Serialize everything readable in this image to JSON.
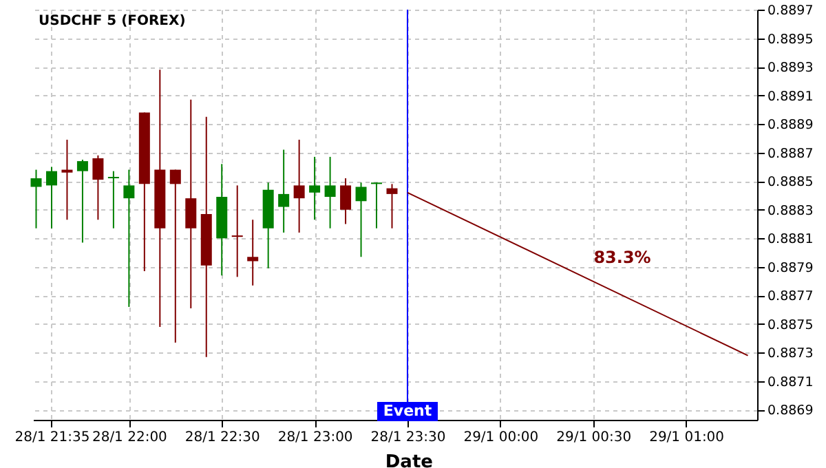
{
  "chart_data": {
    "type": "candlestick",
    "title": "USDCHF 5 (FOREX)",
    "xlabel": "Date",
    "x": [
      "--01-28T21:30",
      "--01-28T21:35",
      "--01-28T21:40",
      "--01-28T21:45",
      "--01-28T21:50",
      "--01-28T21:55",
      "--01-28T22:00",
      "--01-28T22:05",
      "--01-28T22:10",
      "--01-28T22:15",
      "--01-28T22:20",
      "--01-28T22:25",
      "--01-28T22:30",
      "--01-28T22:35",
      "--01-28T22:40",
      "--01-28T22:45",
      "--01-28T22:50",
      "--01-28T22:55",
      "--01-28T23:00",
      "--01-28T23:05",
      "--01-28T23:10",
      "--01-28T23:15",
      "--01-28T23:20",
      "--01-28T23:25"
    ],
    "ohlc": [
      [
        0.88846,
        0.88858,
        0.88817,
        0.88852
      ],
      [
        0.88847,
        0.8886,
        0.88817,
        0.88857
      ],
      [
        0.88858,
        0.88879,
        0.88823,
        0.88856
      ],
      [
        0.88857,
        0.88865,
        0.88807,
        0.88864
      ],
      [
        0.88866,
        0.88868,
        0.88823,
        0.88851
      ],
      [
        0.88852,
        0.88857,
        0.88817,
        0.88853
      ],
      [
        0.88838,
        0.88858,
        0.88762,
        0.88847
      ],
      [
        0.88898,
        0.88898,
        0.88787,
        0.88848
      ],
      [
        0.88858,
        0.88928,
        0.88748,
        0.88817
      ],
      [
        0.88858,
        0.88858,
        0.88737,
        0.88848
      ],
      [
        0.88838,
        0.88907,
        0.88761,
        0.88817
      ],
      [
        0.88827,
        0.88895,
        0.88727,
        0.88791
      ],
      [
        0.8881,
        0.88862,
        0.88784,
        0.88839
      ],
      [
        0.88812,
        0.88847,
        0.88783,
        0.88811
      ],
      [
        0.88797,
        0.88823,
        0.88777,
        0.88794
      ],
      [
        0.88817,
        0.88849,
        0.88789,
        0.88844
      ],
      [
        0.88832,
        0.88872,
        0.88814,
        0.88841
      ],
      [
        0.88847,
        0.88879,
        0.88814,
        0.88838
      ],
      [
        0.88842,
        0.88867,
        0.88823,
        0.88847
      ],
      [
        0.88839,
        0.88867,
        0.88817,
        0.88847
      ],
      [
        0.88847,
        0.88852,
        0.8882,
        0.8883
      ],
      [
        0.88836,
        0.88849,
        0.88797,
        0.88846
      ],
      [
        0.88848,
        0.88849,
        0.88817,
        0.88849
      ],
      [
        0.88845,
        0.88848,
        0.88817,
        0.88841
      ]
    ],
    "colors": [
      "#008000",
      "#008000",
      "#800000",
      "#008000",
      "#800000",
      "#008000",
      "#008000",
      "#800000",
      "#800000",
      "#800000",
      "#800000",
      "#800000",
      "#008000",
      "#800000",
      "#800000",
      "#008000",
      "#008000",
      "#800000",
      "#008000",
      "#008000",
      "#800000",
      "#008000",
      "#008000",
      "#800000"
    ],
    "series": [
      {
        "type": "line",
        "x": [
          "--01-28T23:30",
          "--01-29T01:20"
        ],
        "values": [
          0.88842,
          0.88728
        ],
        "color": "#800000"
      }
    ],
    "annotations": [
      "83.3%"
    ],
    "ref_lines": [
      {
        "axis": "x",
        "value": "--01-28T23:30",
        "label": "Event",
        "color": "#0000ff"
      }
    ],
    "xlim": [
      "--01-28T21:29",
      "--01-29T01:23"
    ],
    "xticks": [
      {
        "value": "--01-28T21:35",
        "label": "28/1 21:35"
      },
      {
        "value": "--01-28T22:00",
        "label": "28/1 22:00"
      },
      {
        "value": "--01-28T22:30",
        "label": "28/1 22:30"
      },
      {
        "value": "--01-28T23:00",
        "label": "28/1 23:00"
      },
      {
        "value": "--01-28T23:30",
        "label": "28/1 23:30"
      },
      {
        "value": "--01-29T00:00",
        "label": "29/1 00:00"
      },
      {
        "value": "--01-29T00:30",
        "label": "29/1 00:30"
      },
      {
        "value": "--01-29T01:00",
        "label": "29/1 01:00"
      }
    ],
    "ylim": [
      0.88683,
      0.8897
    ],
    "yticks": [
      0.8869,
      0.8871,
      0.8873,
      0.8875,
      0.8877,
      0.8879,
      0.8881,
      0.8883,
      0.8885,
      0.8887,
      0.8889,
      0.8891,
      0.8893,
      0.8895,
      0.8897
    ],
    "grid": true
  }
}
